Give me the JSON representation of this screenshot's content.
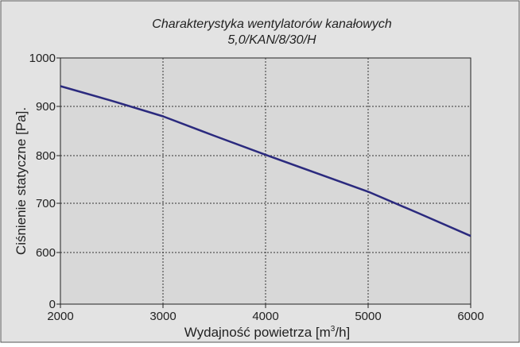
{
  "chart_data": {
    "type": "line",
    "title_line1": "Charakterystyka wentylatorów kanałowych",
    "title_line2": "5,0/KAN/8/30/H",
    "xlabel_prefix": "Wydajność powietrza [m",
    "xlabel_sup": "3",
    "xlabel_suffix": "/h]",
    "ylabel": "Ciśnienie statyczne [Pa].",
    "xlim": [
      2000,
      6000
    ],
    "ylim": [
      0,
      1000
    ],
    "xticks": [
      "2000",
      "3000",
      "4000",
      "5000",
      "6000"
    ],
    "yticks": [
      "0",
      "600",
      "700",
      "800",
      "900",
      "1000"
    ],
    "ytick_values": [
      0,
      600,
      700,
      800,
      900,
      1000
    ],
    "grid": true,
    "series": [
      {
        "color": "#2b2a7e",
        "x": [
          2000,
          2500,
          3000,
          3500,
          4000,
          4500,
          5000,
          5500,
          6000
        ],
        "y": [
          942,
          912,
          880,
          840,
          801,
          763,
          725,
          680,
          634
        ]
      }
    ]
  },
  "colors": {
    "background": "#e3e3e3",
    "plot_background": "#d8d8d8",
    "line": "#2b2a7e"
  }
}
